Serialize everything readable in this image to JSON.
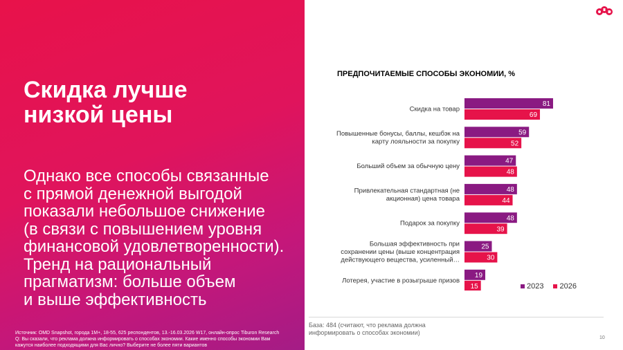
{
  "slide": {
    "title_line1": "Скидка лучше",
    "title_line2": "низкой цены",
    "body": [
      "Однако все способы связанные",
      "с прямой денежной выгодой",
      "показали небольшое снижение",
      "(в связи с повышением уровня",
      "финансовой удовлетворенности).",
      "Тренд на рациональный",
      "прагматизм: больше объем",
      "и выше эффективность"
    ],
    "source": [
      "Источник: OMD Snapshot, города 1М+, 18-55, 625  респондентов, 13.-16.03.2026 W17, онлайн-опрос Tiburon Research",
      "Q: Вы сказали, что реклама должна информировать о способах экономии. Какие именно способы экономии Вам",
      "кажутся наиболее подходящими для Вас лично? Выберите не более пяти вариантов"
    ],
    "base_note": "База: 484 (считают, что реклама должна информировать о способах экономии)",
    "page_number": "10",
    "logo": "omd-logo"
  },
  "colors": {
    "series_2023": "#8a1a82",
    "series_2026": "#e6134a"
  },
  "chart_data": {
    "type": "bar",
    "orientation": "horizontal",
    "title": "ПРЕДПОЧИТАЕМЫЕ СПОСОБЫ ЭКОНОМИИ, %",
    "categories": [
      [
        "Скидка на товар"
      ],
      [
        "Повышенные бонусы, баллы, кешбэк на",
        "карту лояльности за покупку"
      ],
      [
        "Больший объем за обычную цену"
      ],
      [
        "Привлекательная стандартная (не",
        "акционная) цена товара"
      ],
      [
        "Подарок за покупку"
      ],
      [
        "Большая эффективность при",
        "сохранении цены (выше концентрация",
        "действующего вещества, усиленный…"
      ],
      [
        "Лотерея, участие в розыгрыше призов"
      ]
    ],
    "series": [
      {
        "name": "2023",
        "values": [
          81,
          59,
          47,
          48,
          48,
          25,
          19
        ]
      },
      {
        "name": "2026",
        "values": [
          69,
          52,
          48,
          44,
          39,
          30,
          15
        ]
      }
    ],
    "legend_position": "bottom-right",
    "grid": false
  }
}
